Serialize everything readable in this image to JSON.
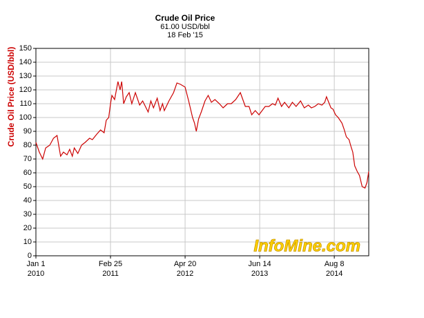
{
  "chart_data": {
    "type": "line",
    "title": "Crude Oil Price",
    "subtitle": "61.00 USD/bbl",
    "date_label": "18 Feb '15",
    "ylabel": "Crude Oil Price (USD/bbl)",
    "watermark": "InfoMine.com",
    "xlim": [
      "2010-01-01",
      "2015-02-18"
    ],
    "xticks": [
      {
        "value": "2010-01-01",
        "label": [
          "Jan 1",
          "2010"
        ]
      },
      {
        "value": "2011-02-25",
        "label": [
          "Feb 25",
          "2011"
        ]
      },
      {
        "value": "2012-04-20",
        "label": [
          "Apr 20",
          "2012"
        ]
      },
      {
        "value": "2013-06-14",
        "label": [
          "Jun 14",
          "2013"
        ]
      },
      {
        "value": "2014-08-08",
        "label": [
          "Aug 8",
          "2014"
        ]
      }
    ],
    "ylim": [
      0,
      150
    ],
    "yticks": [
      0,
      10,
      20,
      30,
      40,
      50,
      60,
      70,
      80,
      90,
      100,
      110,
      120,
      130,
      140,
      150
    ],
    "grid": true,
    "series": [
      {
        "name": "Crude Oil Price",
        "color": "#cc0000",
        "x": [
          "2010-01-01",
          "2010-01-20",
          "2010-02-08",
          "2010-02-25",
          "2010-03-20",
          "2010-04-10",
          "2010-04-30",
          "2010-05-20",
          "2010-06-05",
          "2010-06-25",
          "2010-07-10",
          "2010-07-25",
          "2010-08-05",
          "2010-08-25",
          "2010-09-15",
          "2010-10-05",
          "2010-10-30",
          "2010-11-15",
          "2010-12-10",
          "2010-12-31",
          "2011-01-20",
          "2011-02-01",
          "2011-02-15",
          "2011-02-25",
          "2011-03-05",
          "2011-03-20",
          "2011-04-08",
          "2011-04-20",
          "2011-04-29",
          "2011-05-10",
          "2011-05-25",
          "2011-06-10",
          "2011-06-25",
          "2011-07-15",
          "2011-08-08",
          "2011-08-25",
          "2011-09-25",
          "2011-10-10",
          "2011-10-25",
          "2011-11-15",
          "2011-12-01",
          "2011-12-15",
          "2011-12-25",
          "2012-01-20",
          "2012-02-15",
          "2012-03-05",
          "2012-03-25",
          "2012-04-20",
          "2012-05-10",
          "2012-06-01",
          "2012-06-12",
          "2012-06-22",
          "2012-07-05",
          "2012-07-20",
          "2012-08-10",
          "2012-08-28",
          "2012-09-15",
          "2012-10-05",
          "2012-10-30",
          "2012-11-20",
          "2012-12-15",
          "2013-01-05",
          "2013-01-30",
          "2013-02-25",
          "2013-03-25",
          "2013-04-15",
          "2013-04-30",
          "2013-05-20",
          "2013-06-10",
          "2013-07-15",
          "2013-08-05",
          "2013-08-25",
          "2013-09-10",
          "2013-09-25",
          "2013-10-15",
          "2013-11-01",
          "2013-11-25",
          "2013-12-15",
          "2014-01-05",
          "2014-01-30",
          "2014-02-20",
          "2014-03-15",
          "2014-04-01",
          "2014-04-20",
          "2014-05-10",
          "2014-05-30",
          "2014-06-15",
          "2014-06-25",
          "2014-07-20",
          "2014-08-01",
          "2014-08-15",
          "2014-08-30",
          "2014-09-20",
          "2014-10-01",
          "2014-10-15",
          "2014-10-30",
          "2014-11-10",
          "2014-11-20",
          "2014-12-01",
          "2014-12-15",
          "2014-12-28",
          "2015-01-12",
          "2015-01-28",
          "2015-02-08",
          "2015-02-18"
        ],
        "values": [
          82,
          75,
          70,
          78,
          80,
          85,
          87,
          72,
          75,
          73,
          77,
          72,
          78,
          74,
          80,
          82,
          85,
          84,
          88,
          91,
          89,
          98,
          100,
          110,
          116,
          113,
          126,
          120,
          126,
          110,
          115,
          118,
          110,
          118,
          109,
          112,
          104,
          112,
          107,
          114,
          105,
          110,
          105,
          112,
          118,
          125,
          124,
          122,
          112,
          100,
          96,
          90,
          99,
          104,
          112,
          116,
          111,
          113,
          110,
          107,
          110,
          110,
          113,
          118,
          108,
          108,
          102,
          105,
          102,
          108,
          108,
          110,
          109,
          114,
          108,
          111,
          107,
          111,
          108,
          112,
          107,
          109,
          107,
          108,
          110,
          109,
          111,
          115,
          107,
          106,
          102,
          100,
          96,
          92,
          86,
          84,
          79,
          75,
          65,
          61,
          58,
          50,
          49,
          53,
          61
        ]
      }
    ]
  }
}
